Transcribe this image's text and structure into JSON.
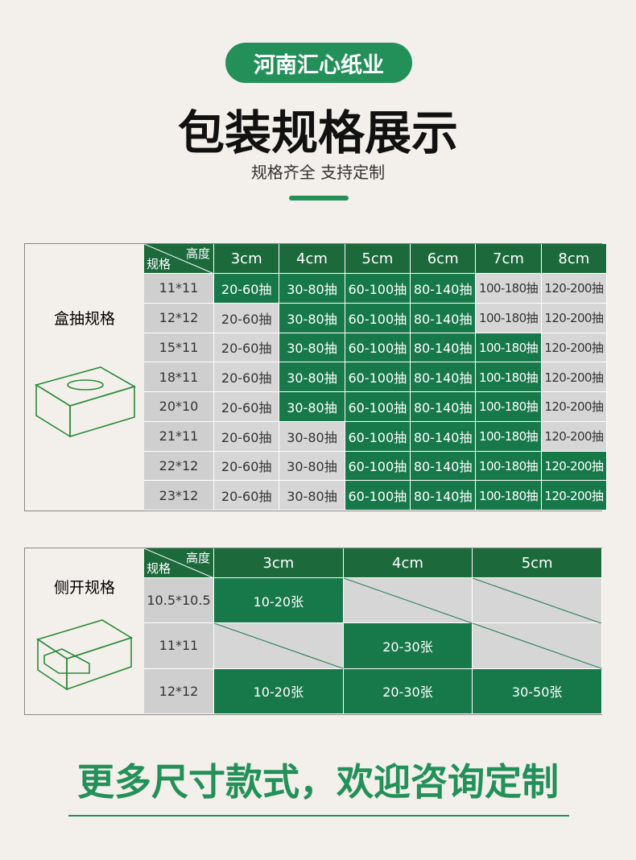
{
  "header": {
    "badge": "河南汇心纸业",
    "title": "包装规格展示",
    "subtitle": "规格齐全 支持定制"
  },
  "tables": [
    {
      "label": "盒抽规格",
      "corner_top": "高度",
      "corner_bottom": "规格",
      "columns": [
        "3cm",
        "4cm",
        "5cm",
        "6cm",
        "7cm",
        "8cm"
      ],
      "rows": [
        {
          "size": "11*11",
          "cells": [
            "20-60抽",
            "30-80抽",
            "60-100抽",
            "80-140抽",
            "100-180抽",
            "120-200抽"
          ],
          "highlight": [
            true,
            true,
            true,
            true,
            false,
            false
          ]
        },
        {
          "size": "12*12",
          "cells": [
            "20-60抽",
            "30-80抽",
            "60-100抽",
            "80-140抽",
            "100-180抽",
            "120-200抽"
          ],
          "highlight": [
            false,
            true,
            true,
            true,
            false,
            false
          ]
        },
        {
          "size": "15*11",
          "cells": [
            "20-60抽",
            "30-80抽",
            "60-100抽",
            "80-140抽",
            "100-180抽",
            "120-200抽"
          ],
          "highlight": [
            false,
            true,
            true,
            true,
            true,
            false
          ]
        },
        {
          "size": "18*11",
          "cells": [
            "20-60抽",
            "30-80抽",
            "60-100抽",
            "80-140抽",
            "100-180抽",
            "120-200抽"
          ],
          "highlight": [
            false,
            true,
            true,
            true,
            true,
            false
          ]
        },
        {
          "size": "20*10",
          "cells": [
            "20-60抽",
            "30-80抽",
            "60-100抽",
            "80-140抽",
            "100-180抽",
            "120-200抽"
          ],
          "highlight": [
            false,
            true,
            true,
            true,
            true,
            false
          ]
        },
        {
          "size": "21*11",
          "cells": [
            "20-60抽",
            "30-80抽",
            "60-100抽",
            "80-140抽",
            "100-180抽",
            "120-200抽"
          ],
          "highlight": [
            false,
            false,
            true,
            true,
            true,
            false
          ]
        },
        {
          "size": "22*12",
          "cells": [
            "20-60抽",
            "30-80抽",
            "60-100抽",
            "80-140抽",
            "100-180抽",
            "120-200抽"
          ],
          "highlight": [
            false,
            false,
            true,
            true,
            true,
            true
          ]
        },
        {
          "size": "23*12",
          "cells": [
            "20-60抽",
            "30-80抽",
            "60-100抽",
            "80-140抽",
            "100-180抽",
            "120-200抽"
          ],
          "highlight": [
            false,
            false,
            true,
            true,
            true,
            true
          ]
        }
      ]
    },
    {
      "label": "侧开规格",
      "corner_top": "高度",
      "corner_bottom": "规格",
      "columns": [
        "3cm",
        "4cm",
        "5cm"
      ],
      "rows": [
        {
          "size": "10.5*10.5",
          "cells": [
            "10-20张",
            null,
            null
          ],
          "highlight": [
            true,
            false,
            false
          ]
        },
        {
          "size": "11*11",
          "cells": [
            null,
            "20-30张",
            null
          ],
          "highlight": [
            false,
            true,
            false
          ]
        },
        {
          "size": "12*12",
          "cells": [
            "10-20张",
            "20-30张",
            "30-50张"
          ],
          "highlight": [
            true,
            true,
            true
          ]
        }
      ]
    }
  ],
  "footer": {
    "text": "更多尺寸款式，欢迎咨询定制"
  }
}
